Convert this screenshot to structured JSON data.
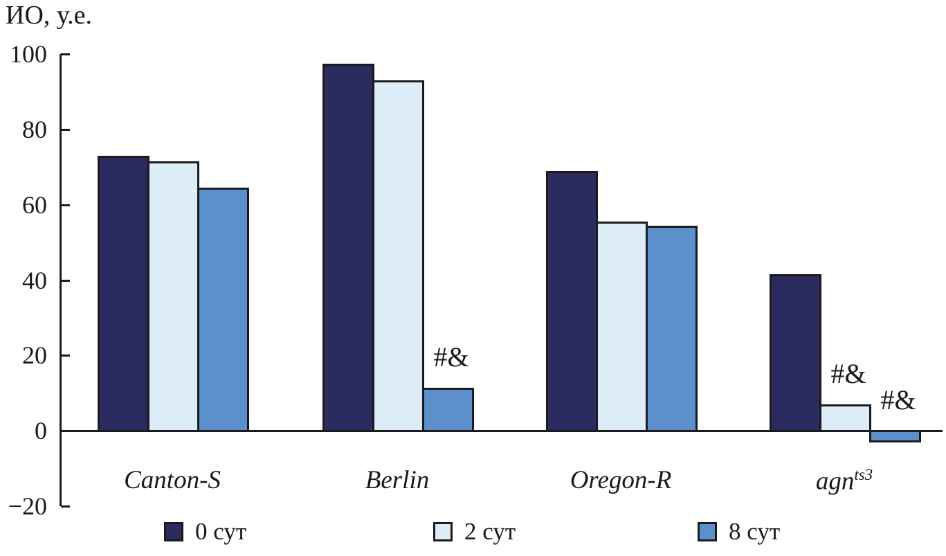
{
  "title": "ИО, у.е.",
  "colors": {
    "series_0": "#2a2b5e",
    "series_1": "#dcedf8",
    "series_2": "#5b90cd",
    "stroke": "#1b1b1b",
    "text": "#1a1a1a",
    "background": "#ffffff"
  },
  "chart_data": {
    "type": "bar",
    "title": "ИО, у.е.",
    "ylabel": "ИО, у.е.",
    "xlabel": "",
    "ylim": [
      -20,
      100
    ],
    "ytick_values": [
      100,
      80,
      60,
      40,
      20,
      0,
      -20
    ],
    "ytick_labels": [
      "100",
      "80",
      "60",
      "40",
      "20",
      "0",
      "−20"
    ],
    "grid": false,
    "categories": [
      {
        "label": "Canton-S",
        "sup": ""
      },
      {
        "label": "Berlin",
        "sup": ""
      },
      {
        "label": "Oregon-R",
        "sup": ""
      },
      {
        "label": "agn",
        "sup": "ts3"
      }
    ],
    "series": [
      {
        "name": "0 сут",
        "color": "#2a2b5e",
        "values": [
          73,
          97.5,
          69,
          41.5
        ]
      },
      {
        "name": "2 сут",
        "color": "#dcedf8",
        "values": [
          71.5,
          93,
          55.5,
          7
        ]
      },
      {
        "name": "8 сут",
        "color": "#5b90cd",
        "values": [
          64.5,
          11.5,
          54.5,
          -2.7
        ]
      }
    ],
    "annotations": [
      {
        "group_index": 1,
        "series_index": 2,
        "text": "#&"
      },
      {
        "group_index": 3,
        "series_index": 1,
        "text": "#&"
      },
      {
        "group_index": 3,
        "series_index": 2,
        "text": "#&"
      }
    ],
    "legend": {
      "position": "bottom",
      "entries": [
        "0 сут",
        "2 сут",
        "8 сут"
      ]
    }
  }
}
